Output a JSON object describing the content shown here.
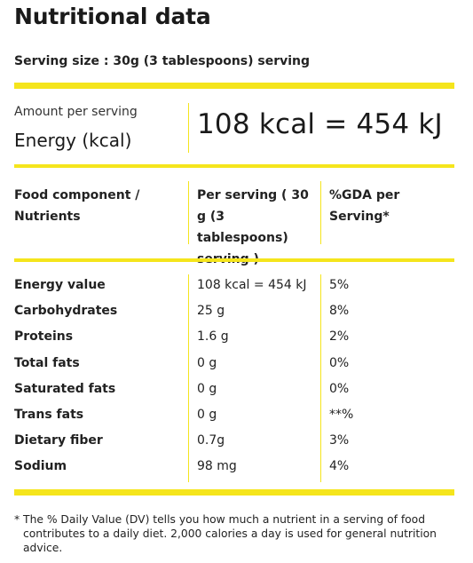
{
  "title": "Nutritional data",
  "serving_size": "Serving size : 30g (3 tablespoons) serving",
  "energy": {
    "amount_label": "Amount per serving",
    "label": "Energy (kcal)",
    "value": "108 kcal = 454 kJ"
  },
  "table": {
    "headers": {
      "component": "Food component / Nutrients",
      "per_serving": "Per serving ( 30 g (3 tablespoons) serving )",
      "gda": "%GDA per Serving*"
    },
    "rows": [
      {
        "name": "Energy value",
        "per": "108 kcal = 454 kJ",
        "gda": "5%"
      },
      {
        "name": "Carbohydrates",
        "per": "25 g",
        "gda": "8%"
      },
      {
        "name": "Proteins",
        "per": "1.6 g",
        "gda": "2%"
      },
      {
        "name": "Total fats",
        "per": "0 g",
        "gda": "0%"
      },
      {
        "name": "Saturated fats",
        "per": "0 g",
        "gda": "0%"
      },
      {
        "name": "Trans fats",
        "per": "0 g",
        "gda": "**%"
      },
      {
        "name": "Dietary fiber",
        "per": "0.7g",
        "gda": "3%"
      },
      {
        "name": "Sodium",
        "per": "98 mg",
        "gda": "4%"
      }
    ]
  },
  "footnote": "* The % Daily Value (DV) tells you how much a nutrient in a serving of food contributes to a daily diet. 2,000 calories a day is used for general nutrition advice.",
  "colors": {
    "accent": "#f5e51c",
    "text": "#222222"
  }
}
